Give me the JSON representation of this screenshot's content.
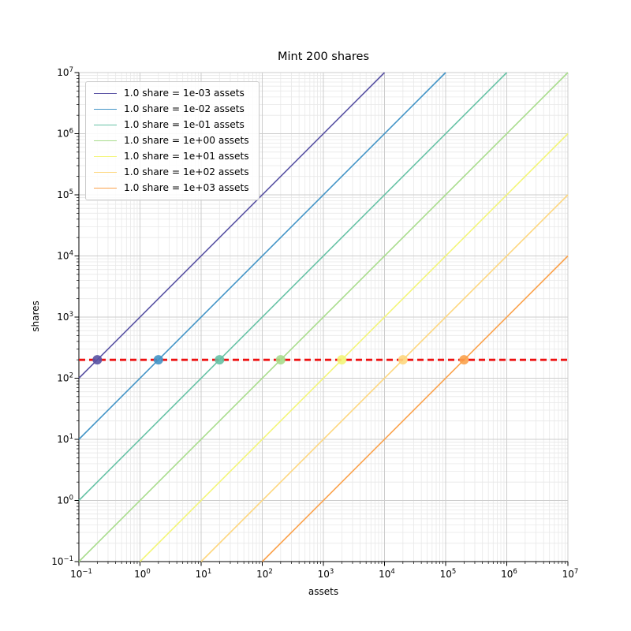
{
  "chart_data": {
    "type": "line",
    "title": "Mint 200 shares",
    "xlabel": "assets",
    "ylabel": "shares",
    "xscale": "log",
    "yscale": "log",
    "xlim": [
      0.1,
      10000000
    ],
    "ylim": [
      0.1,
      10000000
    ],
    "x_tick_exponents": [
      -1,
      0,
      1,
      2,
      3,
      4,
      5,
      6,
      7
    ],
    "y_tick_exponents": [
      -1,
      0,
      1,
      2,
      3,
      4,
      5,
      6,
      7
    ],
    "grid": {
      "major": true,
      "minor": true
    },
    "legend_position": "upper left",
    "series": [
      {
        "label": "1.0 share = 1e-03 assets",
        "color": "#5952a3",
        "assets_per_share": 0.001,
        "line": {
          "x": [
            0.1,
            10000
          ],
          "y": [
            100,
            10000000
          ]
        },
        "marker": {
          "x": 0.2,
          "y": 200
        }
      },
      {
        "label": "1.0 share = 1e-02 assets",
        "color": "#4294c6",
        "assets_per_share": 0.01,
        "line": {
          "x": [
            0.1,
            100000
          ],
          "y": [
            10,
            10000000
          ]
        },
        "marker": {
          "x": 2,
          "y": 200
        }
      },
      {
        "label": "1.0 share = 1e-01 assets",
        "color": "#66c2a5",
        "assets_per_share": 0.1,
        "line": {
          "x": [
            0.1,
            1000000
          ],
          "y": [
            1,
            10000000
          ]
        },
        "marker": {
          "x": 20,
          "y": 200
        }
      },
      {
        "label": "1.0 share = 1e+00 assets",
        "color": "#a8dc8c",
        "assets_per_share": 1,
        "line": {
          "x": [
            0.1,
            10000000
          ],
          "y": [
            0.1,
            10000000
          ]
        },
        "marker": {
          "x": 200,
          "y": 200
        }
      },
      {
        "label": "1.0 share = 1e+01 assets",
        "color": "#f3f579",
        "assets_per_share": 10,
        "line": {
          "x": [
            1,
            10000000
          ],
          "y": [
            0.1,
            1000000
          ]
        },
        "marker": {
          "x": 2000,
          "y": 200
        }
      },
      {
        "label": "1.0 share = 1e+02 assets",
        "color": "#fed77e",
        "assets_per_share": 100,
        "line": {
          "x": [
            10,
            10000000
          ],
          "y": [
            0.1,
            100000
          ]
        },
        "marker": {
          "x": 20000,
          "y": 200
        }
      },
      {
        "label": "1.0 share = 1e+03 assets",
        "color": "#fba24c",
        "assets_per_share": 1000,
        "line": {
          "x": [
            100,
            10000000
          ],
          "y": [
            0.1,
            10000
          ]
        },
        "marker": {
          "x": 200000,
          "y": 200
        }
      }
    ],
    "reference_line": {
      "type": "horizontal",
      "y": 200,
      "color": "#ee1111",
      "linestyle": "dashed"
    }
  },
  "style_colors": {
    "grid_major": "#cccccc",
    "grid_minor": "#e8e8e8",
    "spine": "#000000",
    "tick": "#000000",
    "background": "#ffffff"
  }
}
